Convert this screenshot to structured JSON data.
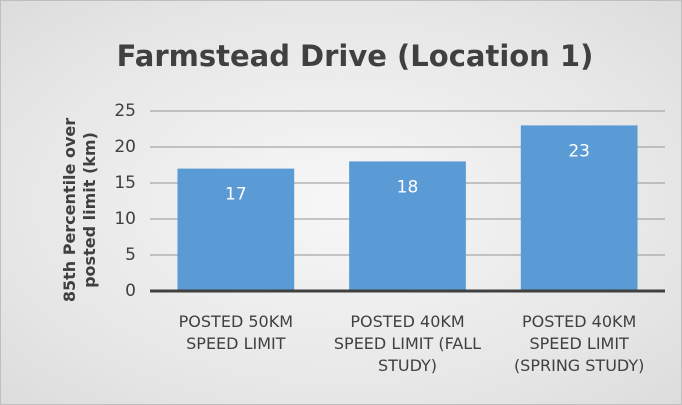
{
  "chart_data": {
    "type": "bar",
    "title": "Farmstead Drive (Location 1)",
    "y_label": "85th Percentile over posted limit (km)",
    "categories": [
      "POSTED 50KM SPEED LIMIT",
      "POSTED 40KM SPEED LIMIT (FALL STUDY)",
      "POSTED 40KM SPEED LIMIT (SPRING STUDY)"
    ],
    "values": [
      17,
      18,
      23
    ],
    "color": "#5b9bd5",
    "ylim": [
      0,
      25
    ],
    "yticks": [
      0,
      5,
      10,
      15,
      20,
      25
    ],
    "grid": true
  }
}
